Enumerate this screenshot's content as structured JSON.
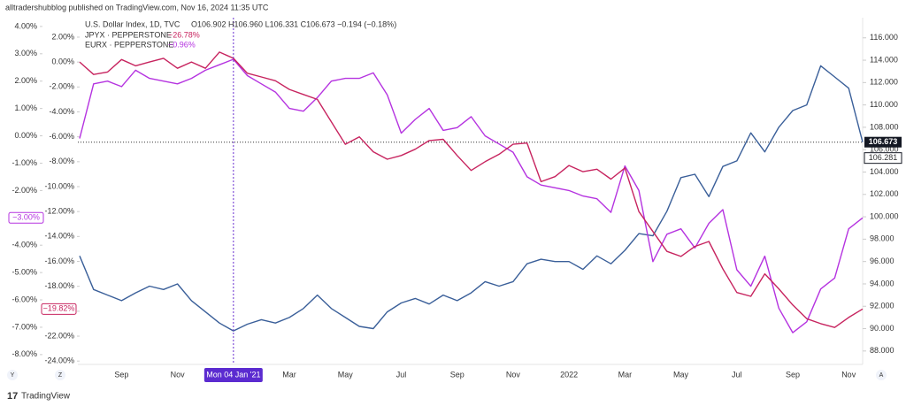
{
  "page": {
    "attribution": "alltradershubblog published on TradingView.com, Nov 16, 2024 11:35 UTC",
    "brand": "TradingView",
    "axis_buttons": [
      "Y",
      "Z",
      "A"
    ]
  },
  "chart_data": {
    "type": "line",
    "categories": [
      null,
      null,
      null,
      "Sep",
      null,
      null,
      null,
      "Nov",
      null,
      null,
      null,
      "Mon 04 Jan '21",
      null,
      null,
      null,
      "Mar",
      null,
      null,
      null,
      "May",
      null,
      null,
      null,
      "Jul",
      null,
      null,
      null,
      "Sep",
      null,
      null,
      null,
      "Nov",
      null,
      null,
      null,
      "2022",
      null,
      null,
      null,
      "Mar",
      null,
      null,
      null,
      "May",
      null,
      null,
      null,
      "Jul",
      null,
      null,
      null,
      "Sep",
      null,
      null,
      null,
      "Nov",
      null
    ],
    "crosshair_index": 11,
    "ylim": [
      86.8,
      117.8
    ],
    "yticks": [
      {
        "value": 88,
        "label": "88.000"
      },
      {
        "value": 90,
        "label": "90.000"
      },
      {
        "value": 92,
        "label": "92.000"
      },
      {
        "value": 94,
        "label": "94.000"
      },
      {
        "value": 96,
        "label": "96.000"
      },
      {
        "value": 98,
        "label": "98.000"
      },
      {
        "value": 100,
        "label": "100.000"
      },
      {
        "value": 102,
        "label": "102.000"
      },
      {
        "value": 104,
        "label": "104.000"
      },
      {
        "value": 106,
        "label": "106.000"
      },
      {
        "value": 108,
        "label": "108.000"
      },
      {
        "value": 110,
        "label": "110.000"
      },
      {
        "value": 112,
        "label": "112.000"
      },
      {
        "value": 114,
        "label": "114.000"
      },
      {
        "value": 116,
        "label": "116.000"
      }
    ],
    "y2lim": [
      -8.36,
      4.32
    ],
    "y2ticks": [
      {
        "value": 4,
        "label": "4.00%"
      },
      {
        "value": 3,
        "label": "3.00%"
      },
      {
        "value": 2,
        "label": "2.00%"
      },
      {
        "value": 1,
        "label": "1.00%"
      },
      {
        "value": 0,
        "label": "0.00%"
      },
      {
        "value": -1,
        "label": "-1.00%"
      },
      {
        "value": -2,
        "label": "-2.00%"
      },
      {
        "value": -3,
        "label": "-3.00%"
      },
      {
        "value": -4,
        "label": "-4.00%"
      },
      {
        "value": -5,
        "label": "-5.00%"
      },
      {
        "value": -6,
        "label": "-6.00%"
      },
      {
        "value": -7,
        "label": "-7.00%"
      },
      {
        "value": -8,
        "label": "-8.00%"
      }
    ],
    "y3lim": [
      -24.27,
      3.56
    ],
    "y3ticks": [
      {
        "value": 2,
        "label": "2.00%"
      },
      {
        "value": 0,
        "label": "0.00%"
      },
      {
        "value": -2,
        "label": "-2.00%"
      },
      {
        "value": -4,
        "label": "-4.00%"
      },
      {
        "value": -6,
        "label": "-6.00%"
      },
      {
        "value": -8,
        "label": "-8.00%"
      },
      {
        "value": -10,
        "label": "-10.00%"
      },
      {
        "value": -12,
        "label": "-12.00%"
      },
      {
        "value": -14,
        "label": "-14.00%"
      },
      {
        "value": -16,
        "label": "-16.00%"
      },
      {
        "value": -18,
        "label": "-18.00%"
      },
      {
        "value": -20,
        "label": "-20.00%"
      },
      {
        "value": -22,
        "label": "-22.00%"
      },
      {
        "value": -24,
        "label": "-24.00%"
      }
    ],
    "series": [
      {
        "name": "U.S. Dollar Index, 1D, TVC",
        "ohlc": "O106.902  H106.960  L106.331  C106.673  −0.194 (−0.18%)",
        "color": "#3a5f99",
        "axis": "y",
        "values": [
          96.5,
          93.5,
          93.0,
          92.5,
          93.2,
          93.8,
          93.5,
          94.0,
          92.5,
          91.5,
          90.5,
          89.8,
          90.4,
          90.8,
          90.5,
          91.0,
          91.8,
          93.0,
          91.8,
          91.0,
          90.2,
          90.0,
          91.5,
          92.3,
          92.7,
          92.2,
          93.0,
          92.5,
          93.2,
          94.2,
          93.8,
          94.2,
          95.8,
          96.2,
          96.0,
          96.0,
          95.3,
          96.5,
          95.8,
          97.0,
          98.5,
          98.3,
          100.5,
          103.5,
          103.8,
          101.8,
          104.5,
          105.0,
          107.5,
          105.8,
          108.0,
          109.5,
          110.0,
          113.5,
          112.5,
          111.5,
          106.673
        ],
        "price_marker": {
          "value": 106.281,
          "label": "106.281"
        }
      },
      {
        "name": "EURX · PEPPERSTONE",
        "change": "−0.96%",
        "color": "#b533e0",
        "axis": "y2",
        "values": [
          -0.1,
          1.9,
          2.0,
          1.8,
          2.4,
          2.1,
          2.0,
          1.9,
          2.1,
          2.4,
          2.6,
          2.8,
          2.2,
          1.9,
          1.6,
          1.0,
          0.9,
          1.4,
          2.0,
          2.1,
          2.1,
          2.3,
          1.5,
          0.1,
          0.6,
          1.0,
          0.2,
          0.3,
          0.7,
          0.0,
          -0.3,
          -0.6,
          -1.5,
          -1.8,
          -1.9,
          -2.0,
          -2.2,
          -2.3,
          -2.8,
          -1.1,
          -2.0,
          -4.6,
          -3.6,
          -3.4,
          -4.1,
          -3.2,
          -2.7,
          -4.9,
          -5.5,
          -4.4,
          -6.3,
          -7.2,
          -6.8,
          -5.6,
          -5.2,
          -3.4,
          -3.0
        ],
        "value_labels": {
          "56": "−3.00%"
        }
      },
      {
        "name": "JPYX · PEPPERSTONE",
        "change": "−26.78%",
        "color": "#c7245f",
        "axis": "y3",
        "values": [
          0.0,
          -1.0,
          -0.8,
          0.2,
          -0.3,
          0.0,
          0.3,
          -0.5,
          0.0,
          -0.5,
          0.8,
          0.3,
          -0.9,
          -1.2,
          -1.5,
          -2.2,
          -2.6,
          -3.0,
          -4.8,
          -6.6,
          -6.0,
          -7.2,
          -7.8,
          -7.5,
          -7.0,
          -6.3,
          -6.2,
          -7.5,
          -8.7,
          -8.0,
          -7.4,
          -6.6,
          -6.5,
          -9.6,
          -9.2,
          -8.3,
          -8.8,
          -8.6,
          -9.4,
          -8.5,
          -12.0,
          -13.6,
          -15.2,
          -15.6,
          -14.8,
          -14.4,
          -16.6,
          -18.5,
          -18.8,
          -17.0,
          -18.2,
          -19.5,
          -20.6,
          -21.0,
          -21.3,
          -20.5,
          -19.82
        ],
        "value_labels": {
          "56": "−19.82%"
        }
      }
    ]
  }
}
